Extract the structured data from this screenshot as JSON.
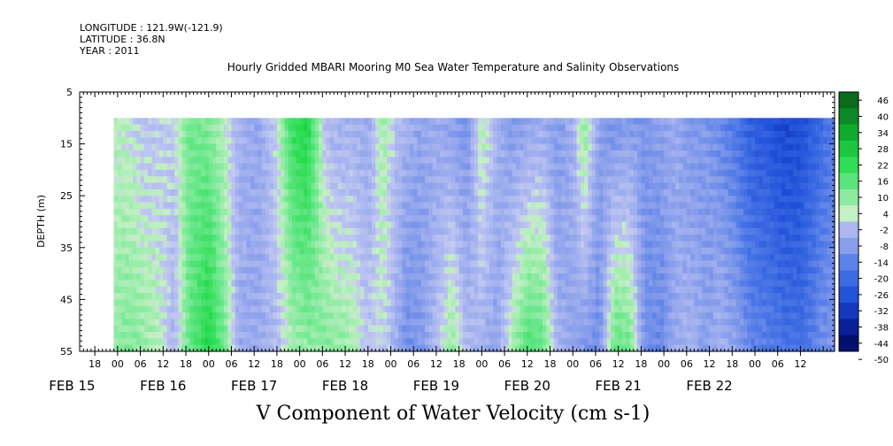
{
  "header": {
    "longitude": "LONGITUDE : 121.9W(-121.9)",
    "latitude": "LATITUDE : 36.8N",
    "year": "YEAR : 2011"
  },
  "chart_data": {
    "type": "heatmap",
    "title": "Hourly Gridded MBARI Mooring M0 Sea Water Temperature and Salinity Observations",
    "xlabel": "V Component of Water Velocity (cm s-1)",
    "ylabel": "DEPTH (m)",
    "ylim": [
      5,
      55
    ],
    "y_inverted": true,
    "y_ticks": [
      5,
      15,
      25,
      35,
      45,
      55
    ],
    "x_range_hours": [
      -10,
      189
    ],
    "x_data_range_hours": [
      -1,
      189
    ],
    "data_depth_range": [
      10,
      55
    ],
    "hour_ticks": [
      {
        "h": -6,
        "label": "18"
      },
      {
        "h": 0,
        "label": "00"
      },
      {
        "h": 6,
        "label": "06"
      },
      {
        "h": 12,
        "label": "12"
      },
      {
        "h": 18,
        "label": "18"
      },
      {
        "h": 24,
        "label": "00"
      },
      {
        "h": 30,
        "label": "06"
      },
      {
        "h": 36,
        "label": "12"
      },
      {
        "h": 42,
        "label": "18"
      },
      {
        "h": 48,
        "label": "00"
      },
      {
        "h": 54,
        "label": "06"
      },
      {
        "h": 60,
        "label": "12"
      },
      {
        "h": 66,
        "label": "18"
      },
      {
        "h": 72,
        "label": "00"
      },
      {
        "h": 78,
        "label": "06"
      },
      {
        "h": 84,
        "label": "12"
      },
      {
        "h": 90,
        "label": "18"
      },
      {
        "h": 96,
        "label": "00"
      },
      {
        "h": 102,
        "label": "06"
      },
      {
        "h": 108,
        "label": "12"
      },
      {
        "h": 114,
        "label": "18"
      },
      {
        "h": 120,
        "label": "00"
      },
      {
        "h": 126,
        "label": "06"
      },
      {
        "h": 132,
        "label": "12"
      },
      {
        "h": 138,
        "label": "18"
      },
      {
        "h": 144,
        "label": "00"
      },
      {
        "h": 150,
        "label": "06"
      },
      {
        "h": 156,
        "label": "12"
      },
      {
        "h": 162,
        "label": "18"
      },
      {
        "h": 168,
        "label": "00"
      },
      {
        "h": 174,
        "label": "06"
      },
      {
        "h": 180,
        "label": "12"
      }
    ],
    "date_labels": [
      {
        "h": -12,
        "label": "FEB 15"
      },
      {
        "h": 12,
        "label": "FEB 16"
      },
      {
        "h": 36,
        "label": "FEB 17"
      },
      {
        "h": 60,
        "label": "FEB 18"
      },
      {
        "h": 84,
        "label": "FEB 19"
      },
      {
        "h": 108,
        "label": "FEB 20"
      },
      {
        "h": 132,
        "label": "FEB 21"
      },
      {
        "h": 156,
        "label": "FEB 22"
      }
    ],
    "colorbar": {
      "levels": [
        -50,
        -44,
        -38,
        -32,
        -26,
        -20,
        -14,
        -8,
        -2,
        4,
        10,
        16,
        22,
        28,
        34,
        40,
        46
      ],
      "labels": [
        "46",
        "40",
        "34",
        "28",
        "22",
        "16",
        "10",
        "4",
        "-2",
        "-8",
        "-14",
        "-20",
        "-26",
        "-32",
        "-38",
        "-44",
        "-50"
      ],
      "stops": [
        {
          "v": -50,
          "color": "#000a55"
        },
        {
          "v": -40,
          "color": "#0a22a0"
        },
        {
          "v": -30,
          "color": "#1e50d8"
        },
        {
          "v": -20,
          "color": "#4a76e6"
        },
        {
          "v": -10,
          "color": "#8ea2ec"
        },
        {
          "v": -1,
          "color": "#c2c8f2"
        },
        {
          "v": 1,
          "color": "#c4f0c4"
        },
        {
          "v": 10,
          "color": "#70e890"
        },
        {
          "v": 20,
          "color": "#28dc50"
        },
        {
          "v": 30,
          "color": "#10b030"
        },
        {
          "v": 40,
          "color": "#0a7a20"
        },
        {
          "v": 50,
          "color": "#054a10"
        }
      ]
    },
    "bands": [
      {
        "h": -1,
        "surface": 2,
        "bottom": 6
      },
      {
        "h": 3,
        "surface": 1,
        "bottom": 8
      },
      {
        "h": 7,
        "surface": -3,
        "bottom": 6
      },
      {
        "h": 11,
        "surface": -2,
        "bottom": 3
      },
      {
        "h": 15,
        "surface": -1,
        "bottom": -6
      },
      {
        "h": 19,
        "surface": 10,
        "bottom": 12
      },
      {
        "h": 24,
        "surface": 8,
        "bottom": 22
      },
      {
        "h": 28,
        "surface": 2,
        "bottom": 10
      },
      {
        "h": 32,
        "surface": -6,
        "bottom": -8
      },
      {
        "h": 37,
        "surface": -9,
        "bottom": -8
      },
      {
        "h": 42,
        "surface": 0,
        "bottom": -4
      },
      {
        "h": 46,
        "surface": 18,
        "bottom": 4
      },
      {
        "h": 50,
        "surface": 22,
        "bottom": 6
      },
      {
        "h": 55,
        "surface": -5,
        "bottom": 8
      },
      {
        "h": 59,
        "surface": -7,
        "bottom": 6
      },
      {
        "h": 62,
        "surface": -6,
        "bottom": 4
      },
      {
        "h": 66,
        "surface": -8,
        "bottom": -2
      },
      {
        "h": 70,
        "surface": 5,
        "bottom": 0
      },
      {
        "h": 73,
        "surface": -3,
        "bottom": -6
      },
      {
        "h": 76,
        "surface": -6,
        "bottom": -14
      },
      {
        "h": 80,
        "surface": -9,
        "bottom": -12
      },
      {
        "h": 84,
        "surface": -8,
        "bottom": -4
      },
      {
        "h": 88,
        "surface": -10,
        "bottom": 6
      },
      {
        "h": 92,
        "surface": -14,
        "bottom": -4
      },
      {
        "h": 96,
        "surface": 4,
        "bottom": -6
      },
      {
        "h": 100,
        "surface": -6,
        "bottom": -10
      },
      {
        "h": 104,
        "surface": -12,
        "bottom": 4
      },
      {
        "h": 108,
        "surface": -10,
        "bottom": 14
      },
      {
        "h": 112,
        "surface": -8,
        "bottom": 12
      },
      {
        "h": 116,
        "surface": -12,
        "bottom": -6
      },
      {
        "h": 120,
        "surface": -6,
        "bottom": -10
      },
      {
        "h": 123,
        "surface": 8,
        "bottom": -12
      },
      {
        "h": 127,
        "surface": -10,
        "bottom": -14
      },
      {
        "h": 131,
        "surface": -14,
        "bottom": 12
      },
      {
        "h": 135,
        "surface": -12,
        "bottom": 10
      },
      {
        "h": 139,
        "surface": -12,
        "bottom": -14
      },
      {
        "h": 143,
        "surface": -10,
        "bottom": -16
      },
      {
        "h": 147,
        "surface": -8,
        "bottom": -8
      },
      {
        "h": 151,
        "surface": -12,
        "bottom": -6
      },
      {
        "h": 155,
        "surface": -12,
        "bottom": -10
      },
      {
        "h": 159,
        "surface": -16,
        "bottom": -6
      },
      {
        "h": 163,
        "surface": -20,
        "bottom": -10
      },
      {
        "h": 167,
        "surface": -26,
        "bottom": -16
      },
      {
        "h": 171,
        "surface": -28,
        "bottom": -18
      },
      {
        "h": 175,
        "surface": -32,
        "bottom": -20
      },
      {
        "h": 180,
        "surface": -30,
        "bottom": -22
      },
      {
        "h": 185,
        "surface": -24,
        "bottom": -14
      },
      {
        "h": 189,
        "surface": -18,
        "bottom": -12
      }
    ]
  }
}
